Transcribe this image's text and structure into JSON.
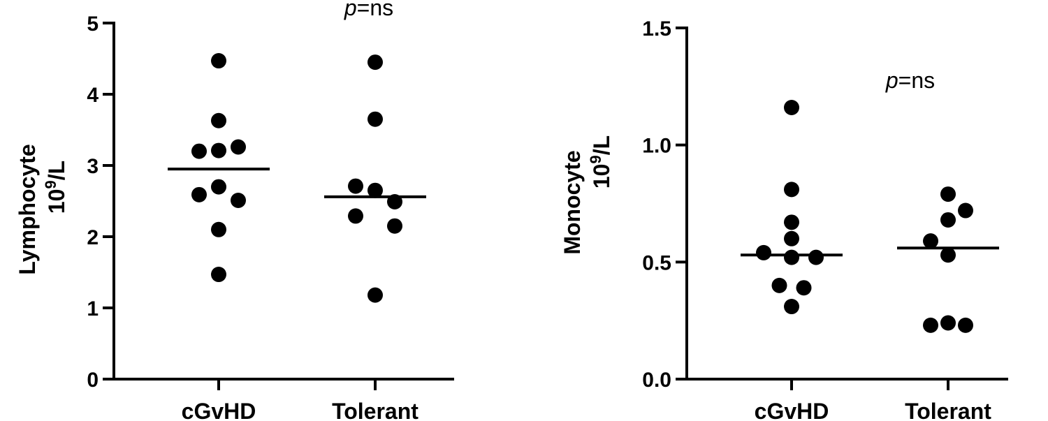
{
  "chart_data": [
    {
      "type": "scatter",
      "ylabel_line1": "Lymphocyte",
      "ylabel_line2_base": "10",
      "ylabel_line2_sup": "9",
      "ylabel_line2_rest": "/L",
      "ylim": [
        0,
        5
      ],
      "yticks": [
        0,
        1,
        2,
        3,
        4,
        5
      ],
      "ytick_labels": [
        "0",
        "1",
        "2",
        "3",
        "4",
        "5"
      ],
      "categories": [
        "cGvHD",
        "Tolerant"
      ],
      "annotation_italic": "p",
      "annotation_rest": "=ns",
      "series": [
        {
          "category": "cGvHD",
          "values": [
            4.47,
            3.63,
            3.2,
            3.21,
            3.26,
            2.7,
            2.59,
            2.51,
            2.1,
            1.47
          ],
          "offsets": [
            0,
            0,
            -1,
            0,
            1,
            0,
            -1,
            1,
            0,
            0
          ],
          "median": 2.95
        },
        {
          "category": "Tolerant",
          "values": [
            4.45,
            3.65,
            2.71,
            2.65,
            2.49,
            2.29,
            2.15,
            1.18
          ],
          "offsets": [
            0,
            0,
            -1,
            0,
            1,
            -1,
            1,
            0
          ],
          "median": 2.56
        }
      ]
    },
    {
      "type": "scatter",
      "ylabel_line1": "Monocyte",
      "ylabel_line2_base": "10",
      "ylabel_line2_sup": "9",
      "ylabel_line2_rest": "/L",
      "ylim": [
        0,
        1.5
      ],
      "yticks": [
        0,
        0.5,
        1.0,
        1.5
      ],
      "ytick_labels": [
        "0.0",
        "0.5",
        "1.0",
        "1.5"
      ],
      "categories": [
        "cGvHD",
        "Tolerant"
      ],
      "annotation_italic": "p",
      "annotation_rest": "=ns",
      "series": [
        {
          "category": "cGvHD",
          "values": [
            1.16,
            0.81,
            0.67,
            0.6,
            0.54,
            0.52,
            0.52,
            0.4,
            0.39,
            0.31
          ],
          "offsets": [
            0,
            0,
            0,
            0,
            -1.6,
            0,
            1.4,
            -0.7,
            0.7,
            0
          ],
          "median": 0.53
        },
        {
          "category": "Tolerant",
          "values": [
            0.79,
            0.72,
            0.68,
            0.59,
            0.53,
            0.24,
            0.23,
            0.23
          ],
          "offsets": [
            0,
            1,
            0,
            -1,
            0,
            0,
            -1,
            1
          ],
          "median": 0.56
        }
      ]
    }
  ]
}
